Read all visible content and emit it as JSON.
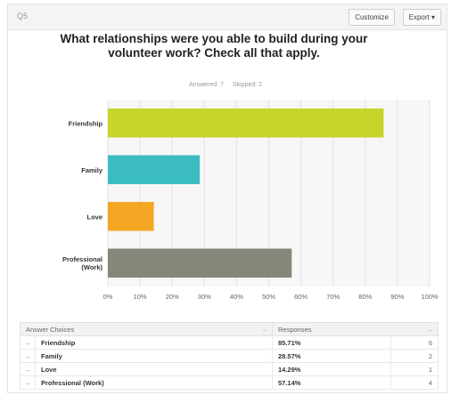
{
  "header": {
    "question_label": "Q5",
    "customize_label": "Customize",
    "export_label": "Export ▾"
  },
  "chart_data": {
    "type": "bar",
    "orientation": "horizontal",
    "title": "What relationships were you able to build during your volunteer work? Check all that apply.",
    "categories": [
      "Friendship",
      "Family",
      "Love",
      "Professional (Work)"
    ],
    "values": [
      85.71,
      28.57,
      14.29,
      57.14
    ],
    "colors": [
      "#c8d42c",
      "#3bbcc0",
      "#f5a623",
      "#85877a"
    ],
    "xlim": [
      0,
      100
    ],
    "tick_labels": [
      "0%",
      "10%",
      "20%",
      "30%",
      "40%",
      "50%",
      "60%",
      "70%",
      "80%",
      "90%",
      "100%"
    ],
    "grid": true,
    "legend": "none"
  },
  "stats": {
    "answered": "Answered: 7",
    "skipped": "Skipped: 2"
  },
  "table": {
    "headers": [
      "Answer Choices",
      "Responses"
    ],
    "rows": [
      {
        "choice": "Friendship",
        "percent": "85.71%",
        "count": "6"
      },
      {
        "choice": "Family",
        "percent": "28.57%",
        "count": "2"
      },
      {
        "choice": "Love",
        "percent": "14.29%",
        "count": "1"
      },
      {
        "choice": "Professional (Work)",
        "percent": "57.14%",
        "count": "4"
      }
    ]
  }
}
